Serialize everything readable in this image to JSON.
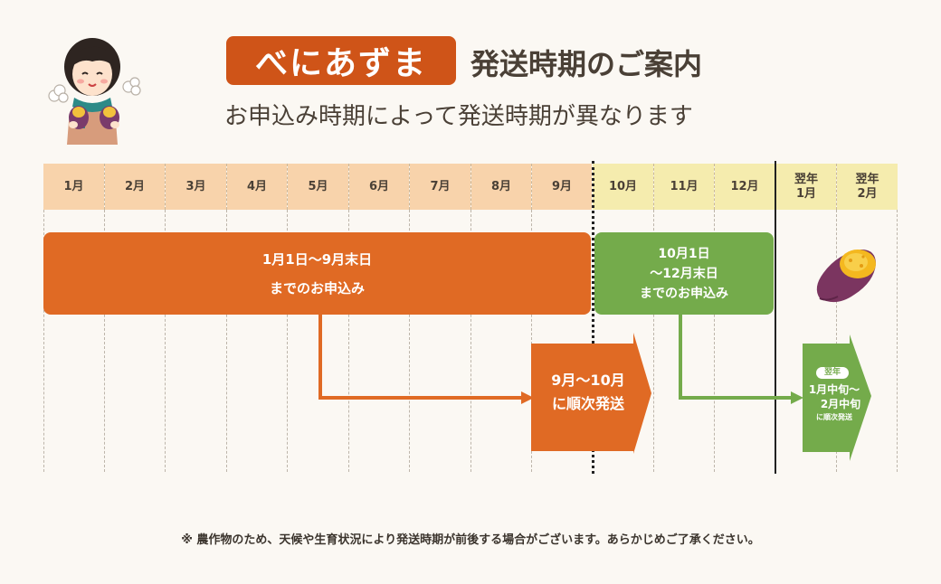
{
  "header": {
    "badge": "べにあずま",
    "title": "発送時期のご案内",
    "subtitle": "お申込み時期によって発送時期が異なります"
  },
  "months": [
    "1月",
    "2月",
    "3月",
    "4月",
    "5月",
    "6月",
    "7月",
    "8月",
    "9月",
    "10月",
    "11月",
    "12月"
  ],
  "next_year": {
    "top": "翌年",
    "months": [
      "1月",
      "2月"
    ]
  },
  "orange_order": {
    "line1": "1月1日〜9月末日",
    "line2": "までのお申込み"
  },
  "green_order": {
    "line1": "10月1日",
    "line2": "〜12月末日",
    "line3": "までのお申込み"
  },
  "orange_ship": {
    "line1": "9月〜10月",
    "line2": "に順次発送"
  },
  "green_ship": {
    "badge": "翌年",
    "line1": "1月中旬〜",
    "line2": "2月中旬",
    "line3": "に順次発送"
  },
  "footnote": "※ 農作物のため、天候や生育状況により発送時期が前後する場合がございます。あらかじめご了承ください。",
  "colors": {
    "orange": "#e06a24",
    "green": "#74ab4b",
    "badge": "#cf5418",
    "month_orange": "#f8d3ab",
    "month_yellow": "#f5ecae"
  },
  "icons": [
    "girl-holding-sweet-potato-illustration",
    "roasted-sweet-potato-illustration"
  ]
}
